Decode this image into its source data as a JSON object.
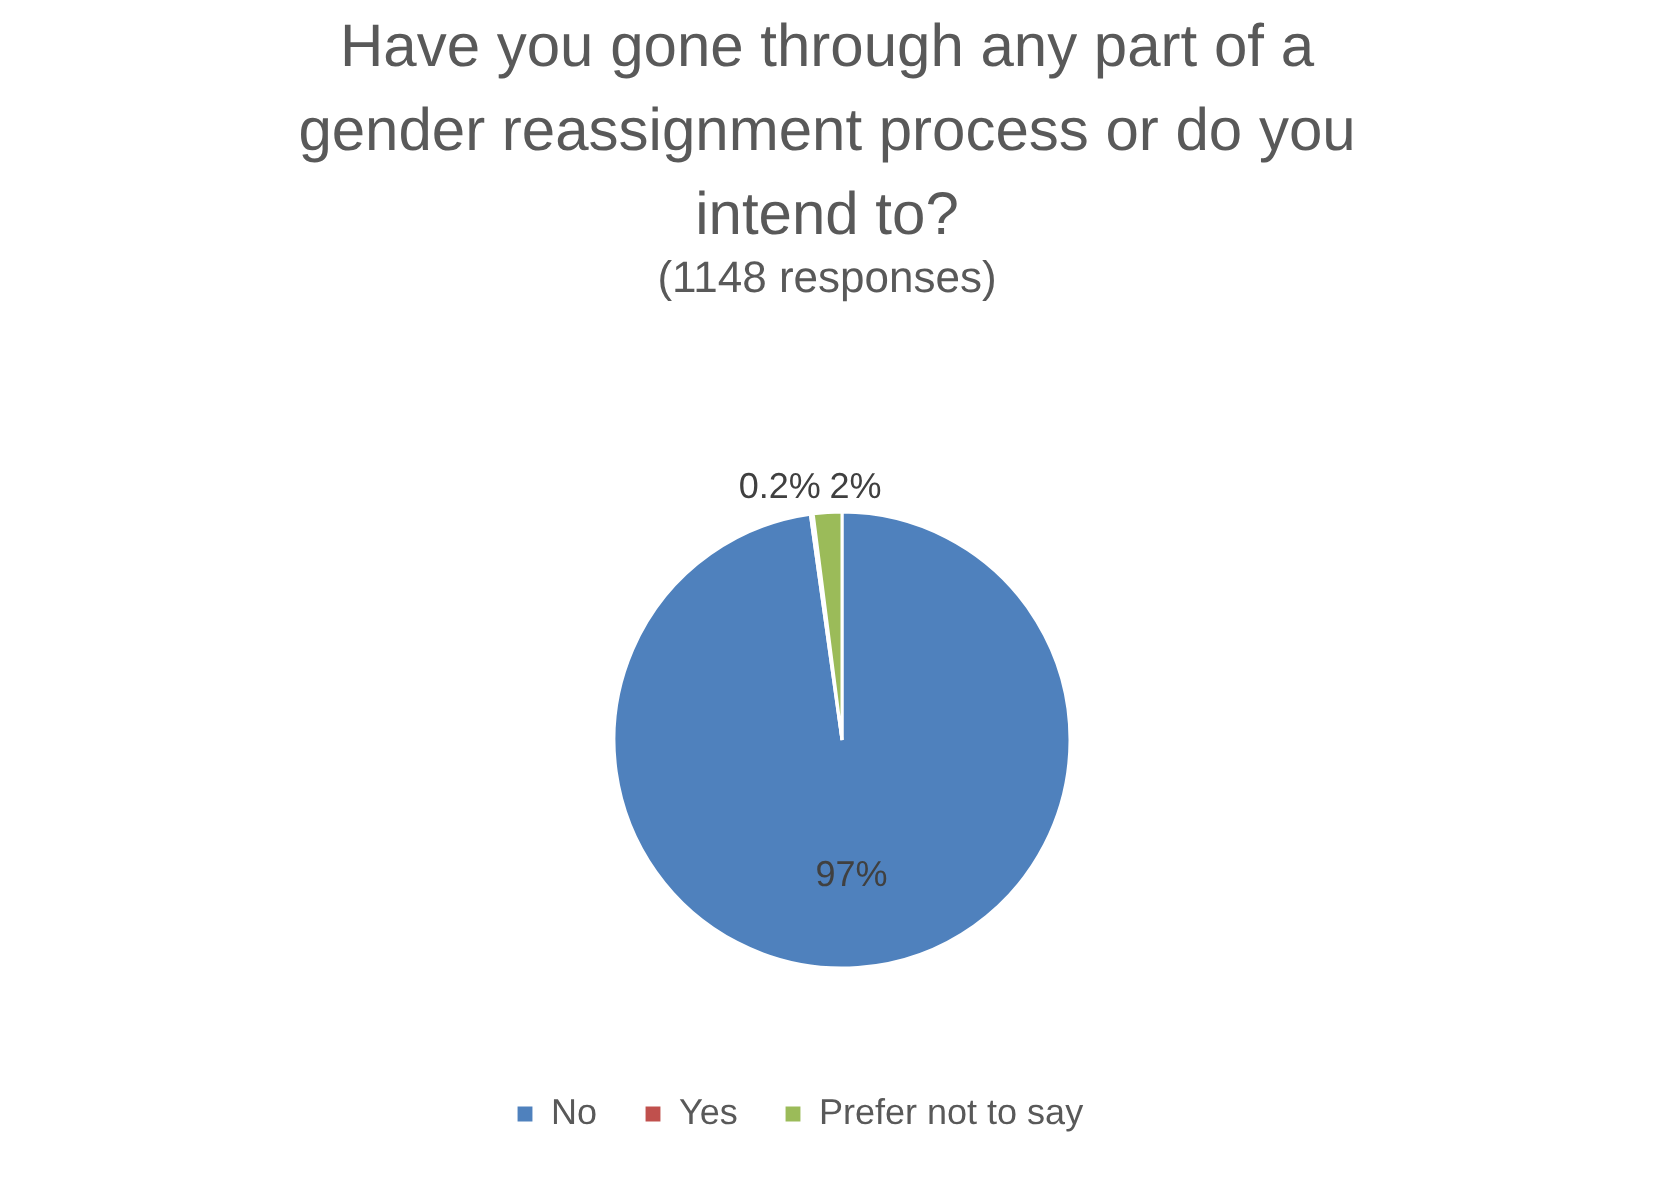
{
  "chart_data": {
    "type": "pie",
    "title": "Have you gone through any part of a gender reassignment process or do you intend to?",
    "subtitle": "(1148 responses)",
    "categories": [
      "No",
      "Yes",
      "Prefer not to say"
    ],
    "values": [
      97,
      0.2,
      2
    ],
    "colors": [
      "#4f81bd",
      "#c0504d",
      "#9bbb59"
    ],
    "value_labels": [
      "97%",
      "0.2%",
      "2%"
    ],
    "legend": "bottom"
  }
}
